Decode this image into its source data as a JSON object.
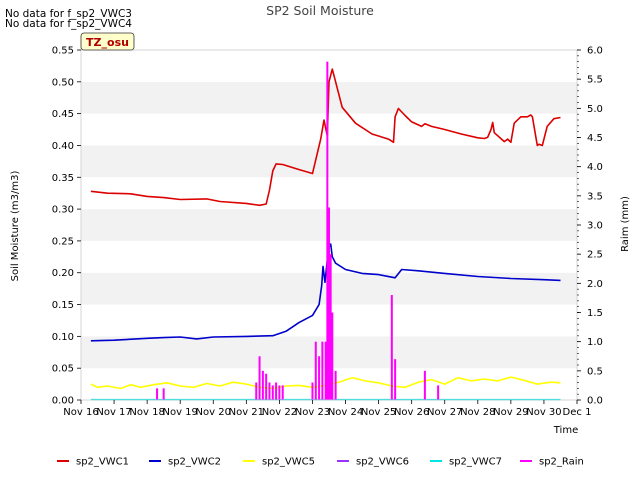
{
  "messages": [
    "No data for f_sp2_VWC3",
    "No data for f_sp2_VWC4"
  ],
  "chart_data": {
    "type": "line",
    "title": "SP2 Soil Moisture",
    "xlabel": "Time",
    "ylabel": "Soil Moisture (m3/m3)",
    "y2label": "Raim (mm)",
    "badge": "TZ_osu",
    "xlim": [
      0,
      15
    ],
    "ylim": [
      0,
      0.55
    ],
    "y2lim": [
      0,
      6.0
    ],
    "x_ticks": [
      0,
      1,
      2,
      3,
      4,
      5,
      6,
      7,
      8,
      9,
      10,
      11,
      12,
      13,
      14,
      15
    ],
    "x_tick_labels": [
      "Nov 16",
      "Nov 17",
      "Nov 18",
      "Nov 19",
      "Nov 20",
      "Nov 21",
      "Nov 22",
      "Nov 23",
      "Nov 24",
      "Nov 25",
      "Nov 26",
      "Nov 27",
      "Nov 28",
      "Nov 29",
      "Nov 30",
      "Dec 1"
    ],
    "y_ticks": [
      0,
      0.05,
      0.1,
      0.15,
      0.2,
      0.25,
      0.3,
      0.35,
      0.4,
      0.45,
      0.5,
      0.55
    ],
    "y_tick_labels": [
      "0.00",
      "0.05",
      "0.10",
      "0.15",
      "0.20",
      "0.25",
      "0.30",
      "0.35",
      "0.40",
      "0.45",
      "0.50",
      "0.55"
    ],
    "y2_ticks": [
      0,
      0.5,
      1.0,
      1.5,
      2.0,
      2.5,
      3.0,
      3.5,
      4.0,
      4.5,
      5.0,
      5.5,
      6.0
    ],
    "y2_tick_labels": [
      "0.0",
      "0.5",
      "1.0",
      "1.5",
      "2.0",
      "2.5",
      "3.0",
      "3.5",
      "4.0",
      "4.5",
      "5.0",
      "5.5",
      "6.0"
    ],
    "series": [
      {
        "name": "sp2_VWC1",
        "color": "#dd0000",
        "axis": "left",
        "x": [
          0.3,
          0.8,
          1.5,
          2.0,
          2.5,
          3.0,
          3.8,
          4.2,
          5.0,
          5.4,
          5.6,
          5.7,
          5.8,
          5.9,
          6.1,
          6.6,
          7.0,
          7.25,
          7.35,
          7.45,
          7.5,
          7.6,
          7.7,
          7.9,
          8.3,
          8.8,
          9.3,
          9.45,
          9.5,
          9.6,
          9.8,
          10.0,
          10.3,
          10.4,
          10.6,
          11.0,
          11.5,
          12.0,
          12.2,
          12.3,
          12.4,
          12.45,
          12.5,
          12.8,
          12.9,
          13.0,
          13.1,
          13.3,
          13.5,
          13.6,
          13.65,
          13.8,
          13.85,
          13.95,
          14.1,
          14.3,
          14.5
        ],
        "y": [
          0.328,
          0.325,
          0.324,
          0.32,
          0.318,
          0.315,
          0.316,
          0.312,
          0.309,
          0.306,
          0.308,
          0.33,
          0.36,
          0.371,
          0.37,
          0.362,
          0.356,
          0.41,
          0.44,
          0.415,
          0.5,
          0.52,
          0.5,
          0.46,
          0.435,
          0.418,
          0.41,
          0.405,
          0.445,
          0.458,
          0.447,
          0.437,
          0.43,
          0.434,
          0.43,
          0.425,
          0.418,
          0.412,
          0.411,
          0.413,
          0.425,
          0.436,
          0.42,
          0.406,
          0.41,
          0.405,
          0.435,
          0.445,
          0.445,
          0.448,
          0.445,
          0.4,
          0.402,
          0.4,
          0.43,
          0.442,
          0.444
        ]
      },
      {
        "name": "sp2_VWC2",
        "color": "#0000cc",
        "axis": "left",
        "x": [
          0.3,
          1.0,
          2.0,
          2.5,
          3.0,
          3.5,
          4.0,
          5.0,
          5.8,
          6.2,
          6.6,
          7.0,
          7.2,
          7.28,
          7.32,
          7.38,
          7.45,
          7.5,
          7.55,
          7.6,
          7.7,
          8.0,
          8.5,
          9.0,
          9.5,
          9.7,
          10.2,
          11.0,
          12.0,
          13.0,
          14.0,
          14.5
        ],
        "y": [
          0.093,
          0.094,
          0.097,
          0.098,
          0.099,
          0.096,
          0.099,
          0.1,
          0.101,
          0.108,
          0.122,
          0.133,
          0.15,
          0.18,
          0.21,
          0.185,
          0.22,
          0.24,
          0.245,
          0.225,
          0.215,
          0.205,
          0.199,
          0.197,
          0.192,
          0.205,
          0.203,
          0.199,
          0.194,
          0.191,
          0.189,
          0.188
        ]
      },
      {
        "name": "sp2_VWC5",
        "color": "#ffff00",
        "axis": "left",
        "x": [
          0.3,
          0.5,
          0.8,
          1.2,
          1.5,
          1.8,
          2.2,
          2.6,
          3.0,
          3.4,
          3.8,
          4.2,
          4.6,
          5.0,
          5.4,
          5.8,
          6.2,
          6.6,
          7.0,
          7.4,
          7.8,
          8.2,
          8.6,
          9.0,
          9.4,
          9.8,
          10.2,
          10.6,
          11.0,
          11.4,
          11.8,
          12.2,
          12.6,
          13.0,
          13.4,
          13.8,
          14.2,
          14.5
        ],
        "y": [
          0.025,
          0.02,
          0.022,
          0.018,
          0.024,
          0.02,
          0.024,
          0.027,
          0.022,
          0.02,
          0.026,
          0.022,
          0.028,
          0.025,
          0.02,
          0.018,
          0.022,
          0.023,
          0.02,
          0.023,
          0.028,
          0.035,
          0.03,
          0.027,
          0.022,
          0.02,
          0.028,
          0.032,
          0.025,
          0.035,
          0.03,
          0.033,
          0.03,
          0.036,
          0.031,
          0.025,
          0.028,
          0.027
        ]
      },
      {
        "name": "sp2_VWC6",
        "color": "#9933ff",
        "axis": "left",
        "x": [],
        "y": []
      },
      {
        "name": "sp2_VWC7",
        "color": "#00e5e5",
        "axis": "left",
        "x": [
          0.3,
          14.5
        ],
        "y": [
          0.0005,
          0.0005
        ]
      },
      {
        "name": "sp2_Rain",
        "color": "#ff00ff",
        "axis": "right",
        "x": [
          2.3,
          2.5,
          5.3,
          5.4,
          5.5,
          5.6,
          5.7,
          5.8,
          5.9,
          6.0,
          6.1,
          7.0,
          7.1,
          7.2,
          7.3,
          7.4,
          7.45,
          7.5,
          7.55,
          7.6,
          7.7,
          9.4,
          9.5,
          10.4,
          10.8
        ],
        "y": [
          0.2,
          0.2,
          0.3,
          0.75,
          0.5,
          0.45,
          0.3,
          0.25,
          0.3,
          0.25,
          0.25,
          0.3,
          1.0,
          0.75,
          1.0,
          1.0,
          5.8,
          3.3,
          2.5,
          1.5,
          0.5,
          1.8,
          0.7,
          0.5,
          0.25
        ]
      }
    ]
  }
}
